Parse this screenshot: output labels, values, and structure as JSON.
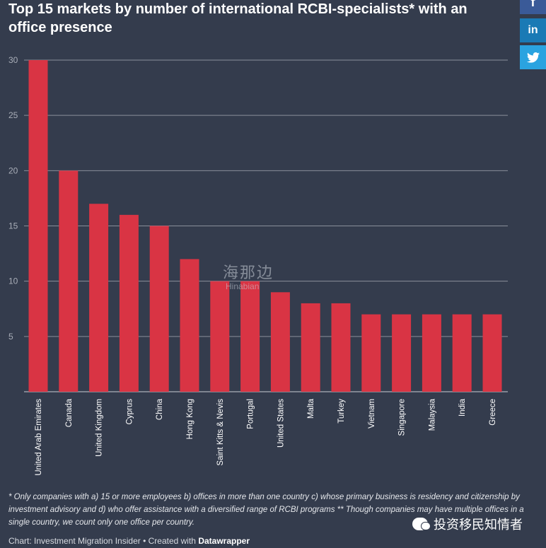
{
  "title": "Top 15 markets by number of international RCBI-specialists* with an office presence",
  "social": {
    "facebook": "f",
    "linkedin": "in",
    "twitter": "🐦"
  },
  "watermark": {
    "cn": "海那边",
    "en": "Hinabian"
  },
  "footnote": "* Only companies with a) 15 or more employees b) offices in more than one country c) whose primary business is residency and citizenship by investment advisory and d) who offer assistance with a diversified range of RCBI programs ** Though companies may have multiple offices in a single country, we count only one office per country.",
  "credit": {
    "prefix": "Chart: Investment Migration Insider • Created with ",
    "tool": "Datawrapper"
  },
  "wechat": {
    "label": "投资移民知情者"
  },
  "colors": {
    "bar": "#d93444",
    "grid": "#8a8f9a",
    "background": "#343c4d"
  },
  "chart_data": {
    "type": "bar",
    "categories": [
      "United Arab Emirates",
      "Canada",
      "United Kingdom",
      "Cyprus",
      "China",
      "Hong Kong",
      "Saint Kitts & Nevis",
      "Portugal",
      "United States",
      "Malta",
      "Turkey",
      "Vietnam",
      "Singapore",
      "Malaysia",
      "India",
      "Greece"
    ],
    "values": [
      30,
      20,
      17,
      16,
      15,
      12,
      10,
      10,
      9,
      8,
      8,
      7,
      7,
      7,
      7,
      7
    ],
    "yticks": [
      5,
      10,
      15,
      20,
      25,
      30
    ],
    "ylim": [
      0,
      30
    ],
    "grid": true
  }
}
